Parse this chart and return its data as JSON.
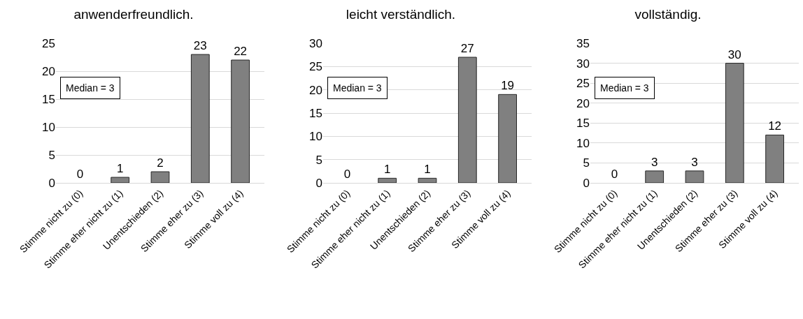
{
  "chart_data": [
    {
      "type": "bar",
      "title": "anwenderfreundlich.",
      "categories": [
        "Stimme nicht zu (0)",
        "Stimme eher nicht zu (1)",
        "Unentschieden (2)",
        "Stimme eher zu (3)",
        "Stimme voll zu (4)"
      ],
      "values": [
        0,
        1,
        2,
        23,
        22
      ],
      "color": "#808080",
      "ylim": [
        0,
        25
      ],
      "yticks": [
        0,
        5,
        10,
        15,
        20,
        25
      ],
      "grid": "y",
      "data_labels": true,
      "annotations": [
        "Median = 3"
      ]
    },
    {
      "type": "bar",
      "title": "leicht verständlich.",
      "categories": [
        "Stimme nicht zu (0)",
        "Stimme eher nicht zu (1)",
        "Unentschieden (2)",
        "Stimme eher zu (3)",
        "Stimme voll zu (4)"
      ],
      "values": [
        0,
        1,
        1,
        27,
        19
      ],
      "color": "#808080",
      "ylim": [
        0,
        30
      ],
      "yticks": [
        0,
        5,
        10,
        15,
        20,
        25,
        30
      ],
      "grid": "y",
      "data_labels": true,
      "annotations": [
        "Median = 3"
      ]
    },
    {
      "type": "bar",
      "title": "vollständig.",
      "categories": [
        "Stimme nicht zu (0)",
        "Stimme eher nicht zu (1)",
        "Unentschieden (2)",
        "Stimme eher zu (3)",
        "Stimme voll zu (4)"
      ],
      "values": [
        0,
        3,
        3,
        30,
        12
      ],
      "color": "#808080",
      "ylim": [
        0,
        35
      ],
      "yticks": [
        0,
        5,
        10,
        15,
        20,
        25,
        30,
        35
      ],
      "grid": "y",
      "data_labels": true,
      "annotations": [
        "Median = 3"
      ]
    }
  ]
}
